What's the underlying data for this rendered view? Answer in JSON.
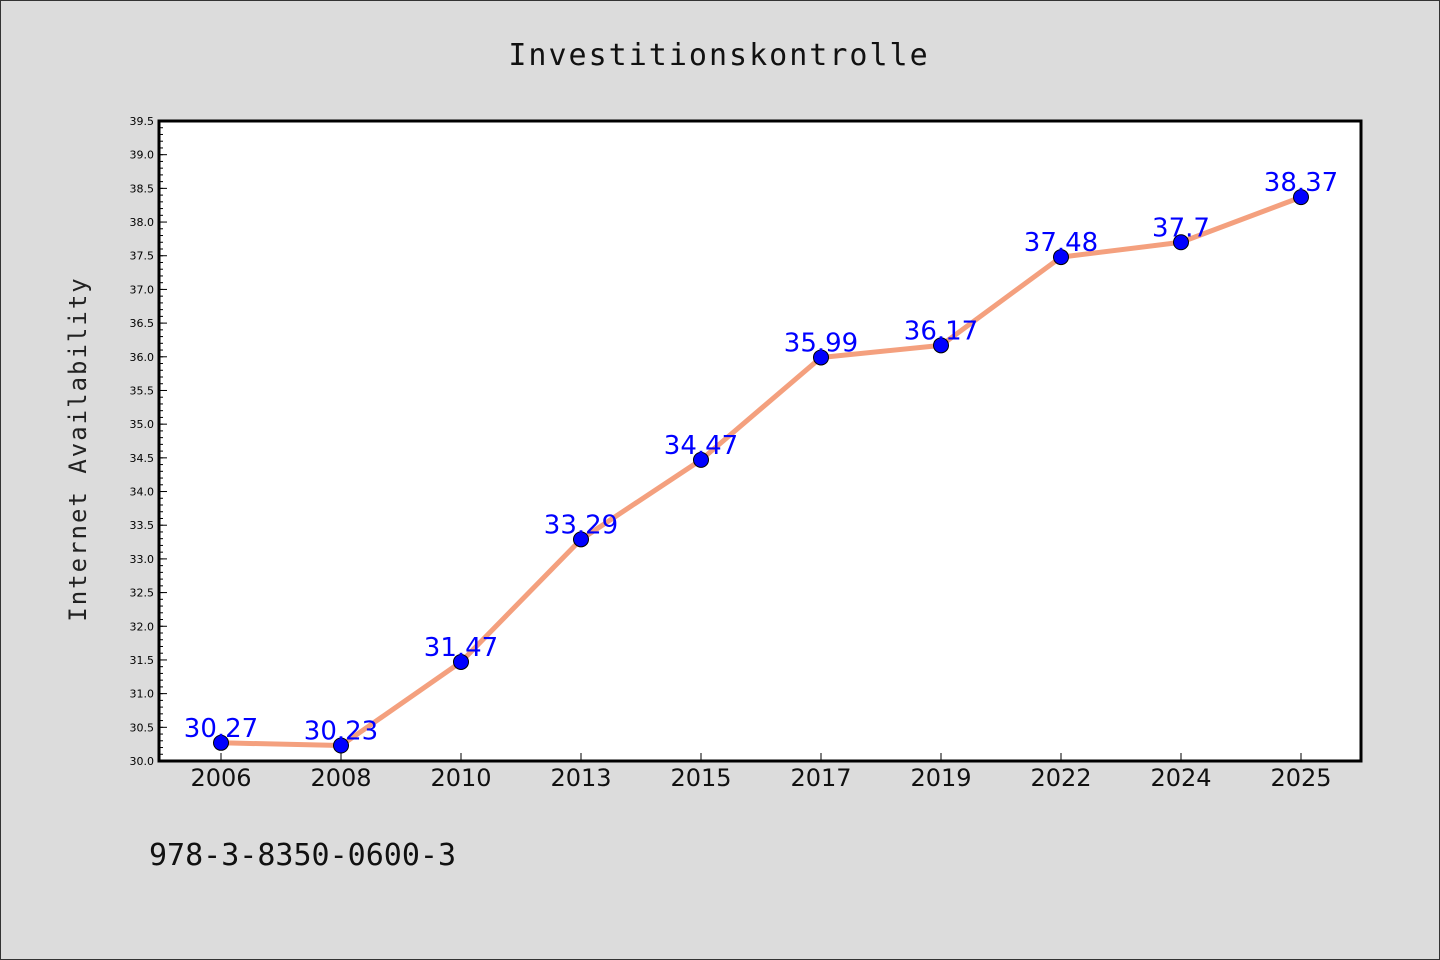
{
  "colors": {
    "background": "#dcdcdc",
    "plot_background": "#ffffff",
    "line": "#f4a07e",
    "marker": "#0000ff",
    "data_label": "#0000ff"
  },
  "footnote": "978-3-8350-0600-3",
  "chart_data": {
    "type": "line",
    "title": "Investitionskontrolle",
    "xlabel": "",
    "ylabel": "Internet Availability",
    "categories": [
      "2006",
      "2008",
      "2010",
      "2013",
      "2015",
      "2017",
      "2019",
      "2022",
      "2024",
      "2025"
    ],
    "series": [
      {
        "values": [
          30.27,
          30.23,
          31.47,
          33.29,
          34.47,
          35.99,
          36.17,
          37.48,
          37.7,
          38.37
        ],
        "labels": [
          "30.27",
          "30.23",
          "31.47",
          "33.29",
          "34.47",
          "35.99",
          "36.17",
          "37.48",
          "37.7",
          "38.37"
        ]
      }
    ],
    "ylim": [
      30.0,
      39.5
    ],
    "yticks": [
      "30.0",
      "30.5",
      "31.0",
      "31.5",
      "32.0",
      "32.5",
      "33.0",
      "33.5",
      "34.0",
      "34.5",
      "35.0",
      "35.5",
      "36.0",
      "36.5",
      "37.0",
      "37.5",
      "38.0",
      "38.5",
      "39.0",
      "39.5"
    ],
    "grid": false,
    "legend": "none"
  }
}
